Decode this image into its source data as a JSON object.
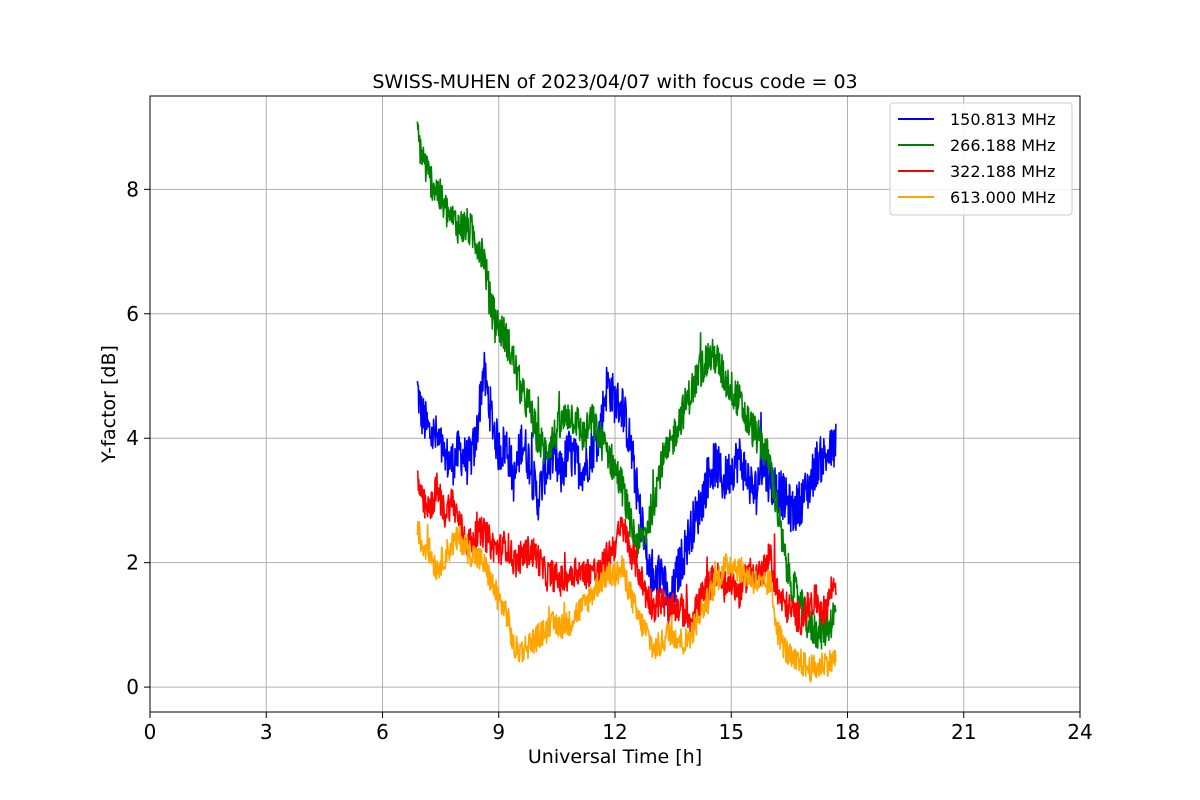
{
  "chart_data": {
    "type": "line",
    "title": "SWISS-MUHEN of 2023/04/07 with focus code = 03",
    "xlabel": "Universal Time [h]",
    "ylabel": "Y-factor [dB]",
    "xlim": [
      0,
      24
    ],
    "ylim": [
      -0.4,
      9.5
    ],
    "xticks": [
      0,
      3,
      6,
      9,
      12,
      15,
      18,
      21,
      24
    ],
    "yticks": [
      0,
      2,
      4,
      6,
      8
    ],
    "grid": true,
    "legend_position": "top-right",
    "x_start": 6.9,
    "x_end": 17.7,
    "series": [
      {
        "name": "150.813 MHz",
        "color": "#0000ff",
        "points": [
          [
            6.9,
            4.8
          ],
          [
            7.0,
            4.4
          ],
          [
            7.2,
            4.1
          ],
          [
            7.4,
            4.0
          ],
          [
            7.6,
            3.7
          ],
          [
            7.8,
            3.6
          ],
          [
            8.0,
            3.8
          ],
          [
            8.2,
            3.6
          ],
          [
            8.4,
            3.9
          ],
          [
            8.6,
            5.1
          ],
          [
            8.8,
            4.4
          ],
          [
            9.0,
            3.8
          ],
          [
            9.2,
            3.9
          ],
          [
            9.4,
            3.3
          ],
          [
            9.6,
            4.0
          ],
          [
            9.8,
            3.6
          ],
          [
            10.0,
            3.0
          ],
          [
            10.2,
            3.5
          ],
          [
            10.4,
            3.7
          ],
          [
            10.6,
            3.4
          ],
          [
            10.8,
            3.8
          ],
          [
            11.0,
            3.6
          ],
          [
            11.2,
            3.5
          ],
          [
            11.4,
            3.8
          ],
          [
            11.6,
            4.1
          ],
          [
            11.8,
            4.9
          ],
          [
            12.0,
            4.6
          ],
          [
            12.2,
            4.5
          ],
          [
            12.4,
            3.9
          ],
          [
            12.6,
            3.0
          ],
          [
            12.8,
            2.1
          ],
          [
            13.0,
            1.6
          ],
          [
            13.2,
            1.9
          ],
          [
            13.4,
            1.2
          ],
          [
            13.6,
            1.8
          ],
          [
            13.8,
            2.2
          ],
          [
            14.0,
            2.6
          ],
          [
            14.2,
            2.9
          ],
          [
            14.4,
            3.4
          ],
          [
            14.6,
            3.6
          ],
          [
            14.8,
            3.3
          ],
          [
            15.0,
            3.5
          ],
          [
            15.2,
            3.7
          ],
          [
            15.4,
            3.4
          ],
          [
            15.6,
            3.1
          ],
          [
            15.8,
            3.6
          ],
          [
            16.0,
            3.3
          ],
          [
            16.2,
            3.2
          ],
          [
            16.4,
            3.0
          ],
          [
            16.6,
            2.8
          ],
          [
            16.8,
            3.0
          ],
          [
            17.0,
            3.2
          ],
          [
            17.2,
            3.6
          ],
          [
            17.4,
            3.7
          ],
          [
            17.6,
            3.8
          ],
          [
            17.7,
            3.9
          ]
        ]
      },
      {
        "name": "266.188 MHz",
        "color": "#008000",
        "points": [
          [
            6.9,
            8.9
          ],
          [
            7.0,
            8.6
          ],
          [
            7.2,
            8.2
          ],
          [
            7.4,
            8.0
          ],
          [
            7.6,
            7.7
          ],
          [
            7.8,
            7.5
          ],
          [
            8.0,
            7.4
          ],
          [
            8.2,
            7.4
          ],
          [
            8.4,
            7.2
          ],
          [
            8.6,
            7.0
          ],
          [
            8.8,
            6.1
          ],
          [
            9.0,
            5.8
          ],
          [
            9.2,
            5.6
          ],
          [
            9.4,
            5.2
          ],
          [
            9.6,
            4.7
          ],
          [
            9.8,
            4.5
          ],
          [
            10.0,
            4.0
          ],
          [
            10.2,
            3.8
          ],
          [
            10.4,
            4.0
          ],
          [
            10.6,
            4.2
          ],
          [
            10.8,
            4.4
          ],
          [
            11.0,
            4.3
          ],
          [
            11.2,
            4.0
          ],
          [
            11.4,
            4.3
          ],
          [
            11.6,
            4.0
          ],
          [
            11.8,
            3.8
          ],
          [
            12.0,
            3.5
          ],
          [
            12.2,
            3.2
          ],
          [
            12.4,
            2.6
          ],
          [
            12.6,
            2.3
          ],
          [
            12.8,
            2.5
          ],
          [
            13.0,
            3.0
          ],
          [
            13.2,
            3.6
          ],
          [
            13.4,
            3.8
          ],
          [
            13.6,
            4.2
          ],
          [
            13.8,
            4.5
          ],
          [
            14.0,
            4.8
          ],
          [
            14.2,
            5.1
          ],
          [
            14.4,
            5.3
          ],
          [
            14.6,
            5.3
          ],
          [
            14.8,
            5.0
          ],
          [
            15.0,
            4.8
          ],
          [
            15.2,
            4.6
          ],
          [
            15.4,
            4.3
          ],
          [
            15.6,
            4.1
          ],
          [
            15.8,
            3.9
          ],
          [
            16.0,
            3.6
          ],
          [
            16.2,
            2.8
          ],
          [
            16.4,
            2.0
          ],
          [
            16.6,
            1.6
          ],
          [
            16.8,
            1.3
          ],
          [
            17.0,
            1.0
          ],
          [
            17.2,
            0.9
          ],
          [
            17.4,
            0.9
          ],
          [
            17.6,
            1.1
          ],
          [
            17.7,
            1.2
          ]
        ]
      },
      {
        "name": "322.188 MHz",
        "color": "#ff0000",
        "points": [
          [
            6.9,
            3.4
          ],
          [
            7.0,
            3.0
          ],
          [
            7.2,
            2.8
          ],
          [
            7.4,
            3.2
          ],
          [
            7.6,
            2.8
          ],
          [
            7.8,
            3.0
          ],
          [
            8.0,
            2.6
          ],
          [
            8.2,
            2.3
          ],
          [
            8.4,
            2.4
          ],
          [
            8.6,
            2.5
          ],
          [
            8.8,
            2.3
          ],
          [
            9.0,
            2.2
          ],
          [
            9.2,
            2.3
          ],
          [
            9.4,
            2.0
          ],
          [
            9.6,
            2.1
          ],
          [
            9.8,
            2.2
          ],
          [
            10.0,
            2.1
          ],
          [
            10.2,
            1.8
          ],
          [
            10.4,
            1.8
          ],
          [
            10.6,
            1.7
          ],
          [
            10.8,
            1.8
          ],
          [
            11.0,
            1.9
          ],
          [
            11.2,
            1.8
          ],
          [
            11.4,
            1.9
          ],
          [
            11.6,
            1.8
          ],
          [
            11.8,
            2.1
          ],
          [
            12.0,
            2.3
          ],
          [
            12.2,
            2.6
          ],
          [
            12.4,
            2.2
          ],
          [
            12.6,
            1.9
          ],
          [
            12.8,
            1.5
          ],
          [
            13.0,
            1.3
          ],
          [
            13.2,
            1.4
          ],
          [
            13.4,
            1.2
          ],
          [
            13.6,
            1.3
          ],
          [
            13.8,
            1.2
          ],
          [
            14.0,
            1.1
          ],
          [
            14.2,
            1.4
          ],
          [
            14.4,
            1.6
          ],
          [
            14.6,
            1.8
          ],
          [
            14.8,
            1.6
          ],
          [
            15.0,
            1.7
          ],
          [
            15.2,
            1.5
          ],
          [
            15.4,
            1.8
          ],
          [
            15.6,
            1.9
          ],
          [
            15.8,
            1.8
          ],
          [
            16.0,
            2.1
          ],
          [
            16.2,
            1.5
          ],
          [
            16.4,
            1.3
          ],
          [
            16.6,
            1.2
          ],
          [
            16.8,
            1.1
          ],
          [
            17.0,
            1.3
          ],
          [
            17.2,
            1.4
          ],
          [
            17.4,
            1.2
          ],
          [
            17.6,
            1.6
          ],
          [
            17.7,
            1.7
          ]
        ]
      },
      {
        "name": "613.000 MHz",
        "color": "#ffa500",
        "points": [
          [
            6.9,
            2.6
          ],
          [
            7.0,
            2.3
          ],
          [
            7.2,
            2.2
          ],
          [
            7.4,
            1.9
          ],
          [
            7.6,
            2.1
          ],
          [
            7.8,
            2.3
          ],
          [
            8.0,
            2.4
          ],
          [
            8.2,
            2.2
          ],
          [
            8.4,
            2.1
          ],
          [
            8.6,
            2.0
          ],
          [
            8.8,
            1.7
          ],
          [
            9.0,
            1.4
          ],
          [
            9.2,
            1.2
          ],
          [
            9.4,
            0.6
          ],
          [
            9.6,
            0.6
          ],
          [
            9.8,
            0.7
          ],
          [
            10.0,
            0.8
          ],
          [
            10.2,
            0.9
          ],
          [
            10.4,
            1.0
          ],
          [
            10.6,
            1.0
          ],
          [
            10.8,
            1.0
          ],
          [
            11.0,
            1.2
          ],
          [
            11.2,
            1.3
          ],
          [
            11.4,
            1.5
          ],
          [
            11.6,
            1.7
          ],
          [
            11.8,
            1.8
          ],
          [
            12.0,
            1.8
          ],
          [
            12.2,
            1.9
          ],
          [
            12.4,
            1.5
          ],
          [
            12.6,
            1.1
          ],
          [
            12.8,
            0.9
          ],
          [
            13.0,
            0.6
          ],
          [
            13.2,
            0.7
          ],
          [
            13.4,
            0.9
          ],
          [
            13.6,
            0.8
          ],
          [
            13.8,
            0.7
          ],
          [
            14.0,
            0.9
          ],
          [
            14.2,
            1.2
          ],
          [
            14.4,
            1.4
          ],
          [
            14.6,
            1.7
          ],
          [
            14.8,
            1.9
          ],
          [
            15.0,
            2.0
          ],
          [
            15.2,
            1.9
          ],
          [
            15.4,
            1.8
          ],
          [
            15.6,
            1.7
          ],
          [
            15.8,
            1.6
          ],
          [
            16.0,
            1.7
          ],
          [
            16.2,
            0.9
          ],
          [
            16.4,
            0.6
          ],
          [
            16.6,
            0.4
          ],
          [
            16.8,
            0.4
          ],
          [
            17.0,
            0.3
          ],
          [
            17.2,
            0.3
          ],
          [
            17.4,
            0.4
          ],
          [
            17.6,
            0.4
          ],
          [
            17.7,
            0.5
          ]
        ]
      }
    ]
  }
}
